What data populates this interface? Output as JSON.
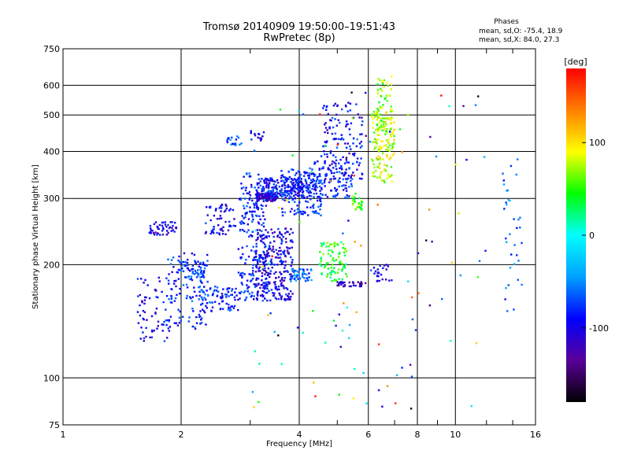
{
  "chart_data": {
    "type": "scatter",
    "title": "Tromsø 20140909 19:50:00–19:51:43",
    "subtitle": "RwPretec (8p)",
    "xlabel": "Frequency [MHz]",
    "ylabel": "Stationary phase Virtual Height [km]",
    "x_scale": "log",
    "y_scale": "log",
    "xlim": [
      1,
      16
    ],
    "ylim": [
      75,
      750
    ],
    "grid": true,
    "x_ticks": [
      1,
      2,
      4,
      6,
      8,
      10,
      16
    ],
    "y_ticks": [
      75,
      100,
      200,
      300,
      400,
      500,
      600,
      750
    ],
    "stats_header": "Phases",
    "stats_line1": "mean, sd,O: -75.4, 18.9",
    "stats_line2": "mean, sd,X:  84.0, 27.3",
    "colorbar": {
      "label": "[deg]",
      "range": [
        -180,
        180
      ],
      "ticks": [
        100,
        0,
        -100
      ],
      "colors": [
        "#000000",
        "#5a0099",
        "#0000ff",
        "#00a0ff",
        "#00ffff",
        "#00ff00",
        "#ffff00",
        "#ff8000",
        "#ff0000"
      ]
    },
    "clusters": [
      {
        "f": [
          1.65,
          1.95
        ],
        "h": [
          240,
          260
        ],
        "phase": -100,
        "n": 50
      },
      {
        "f": [
          1.55,
          1.9
        ],
        "h": [
          125,
          185
        ],
        "phase": -95,
        "n": 70
      },
      {
        "f": [
          1.85,
          2.35
        ],
        "h": [
          135,
          215
        ],
        "phase": -80,
        "n": 110
      },
      {
        "f": [
          2.0,
          2.3
        ],
        "h": [
          185,
          205
        ],
        "phase": -75,
        "n": 50
      },
      {
        "f": [
          2.25,
          2.8
        ],
        "h": [
          150,
          175
        ],
        "phase": -80,
        "n": 80
      },
      {
        "f": [
          2.3,
          2.75
        ],
        "h": [
          240,
          290
        ],
        "phase": -90,
        "n": 60
      },
      {
        "f": [
          2.6,
          2.85
        ],
        "h": [
          415,
          440
        ],
        "phase": -70,
        "n": 20
      },
      {
        "f": [
          2.8,
          3.3
        ],
        "h": [
          160,
          350
        ],
        "phase": -85,
        "n": 220
      },
      {
        "f": [
          3.0,
          3.25
        ],
        "h": [
          420,
          460
        ],
        "phase": -100,
        "n": 15
      },
      {
        "f": [
          3.1,
          3.5
        ],
        "h": [
          295,
          310
        ],
        "phase": -110,
        "n": 120
      },
      {
        "f": [
          3.2,
          4.2
        ],
        "h": [
          300,
          340
        ],
        "phase": -90,
        "n": 200
      },
      {
        "f": [
          3.1,
          3.85
        ],
        "h": [
          160,
          250
        ],
        "phase": -100,
        "n": 260
      },
      {
        "f": [
          3.6,
          4.6
        ],
        "h": [
          270,
          360
        ],
        "phase": -80,
        "n": 140
      },
      {
        "f": [
          3.8,
          4.3
        ],
        "h": [
          180,
          195
        ],
        "phase": -65,
        "n": 50
      },
      {
        "f": [
          4.2,
          5.5
        ],
        "h": [
          300,
          380
        ],
        "phase": -85,
        "n": 130
      },
      {
        "f": [
          4.6,
          5.8
        ],
        "h": [
          330,
          540
        ],
        "phase": -90,
        "n": 130
      },
      {
        "f": [
          4.5,
          5.3
        ],
        "h": [
          180,
          230
        ],
        "phase": 40,
        "n": 90
      },
      {
        "f": [
          5.0,
          5.8
        ],
        "h": [
          175,
          180
        ],
        "phase": -120,
        "n": 35
      },
      {
        "f": [
          5.4,
          5.8
        ],
        "h": [
          280,
          310
        ],
        "phase": 60,
        "n": 30
      },
      {
        "f": [
          6.1,
          7.0
        ],
        "h": [
          330,
          520
        ],
        "phase": 80,
        "n": 140
      },
      {
        "f": [
          6.3,
          6.9
        ],
        "h": [
          450,
          640
        ],
        "phase": 70,
        "n": 60
      },
      {
        "f": [
          6.2,
          6.9
        ],
        "h": [
          180,
          200
        ],
        "phase": -100,
        "n": 25
      },
      {
        "f": [
          3.0,
          12.0
        ],
        "h": [
          80,
          600
        ],
        "phase": 0,
        "n": 120,
        "sparse": true
      },
      {
        "f": [
          13.2,
          14.8
        ],
        "h": [
          150,
          400
        ],
        "phase": -60,
        "n": 35
      }
    ]
  }
}
